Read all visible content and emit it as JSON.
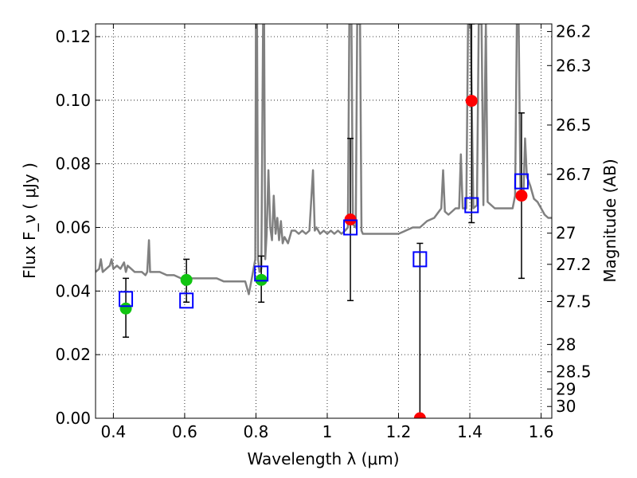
{
  "chart_data": {
    "type": "scatter",
    "title": "",
    "xlabel": "Wavelength  λ (μm)",
    "ylabel": "Flux  F_ν  ( μJy )",
    "ylabel_right": "Magnitude (AB)",
    "xlim": [
      0.35,
      1.63
    ],
    "ylim": [
      0.0,
      0.124
    ],
    "grid": true,
    "x_ticks": [
      0.4,
      0.6,
      0.8,
      1.0,
      1.2,
      1.4,
      1.6
    ],
    "x_tick_labels": [
      "0.4",
      "0.6",
      "0.8",
      "1",
      "1.2",
      "1.4",
      "1.6"
    ],
    "y_ticks": [
      0.0,
      0.02,
      0.04,
      0.06,
      0.08,
      0.1,
      0.12
    ],
    "y_tick_labels": [
      "0.00",
      "0.02",
      "0.04",
      "0.06",
      "0.08",
      "0.10",
      "0.12"
    ],
    "mag_ticks": [
      {
        "label": "26.2",
        "flux": 0.1216
      },
      {
        "label": "26.3",
        "flux": 0.1109
      },
      {
        "label": "26.5",
        "flux": 0.0922
      },
      {
        "label": "26.7",
        "flux": 0.0767
      },
      {
        "label": "27",
        "flux": 0.0582
      },
      {
        "label": "27.2",
        "flux": 0.0484
      },
      {
        "label": "27.5",
        "flux": 0.0367
      },
      {
        "label": "28",
        "flux": 0.0232
      },
      {
        "label": "28.5",
        "flux": 0.0146
      },
      {
        "label": "29",
        "flux": 0.0092
      },
      {
        "label": "30",
        "flux": 0.0037
      }
    ],
    "colors": {
      "model": "#808080",
      "green": "#11c511",
      "red": "#ff0000",
      "box": "#0000ff",
      "errorbar": "#000000"
    },
    "model_spectrum": [
      [
        0.35,
        0.046
      ],
      [
        0.36,
        0.047
      ],
      [
        0.365,
        0.05
      ],
      [
        0.37,
        0.046
      ],
      [
        0.38,
        0.047
      ],
      [
        0.39,
        0.048
      ],
      [
        0.395,
        0.05
      ],
      [
        0.4,
        0.047
      ],
      [
        0.41,
        0.048
      ],
      [
        0.42,
        0.047
      ],
      [
        0.43,
        0.049
      ],
      [
        0.435,
        0.046
      ],
      [
        0.44,
        0.048
      ],
      [
        0.45,
        0.047
      ],
      [
        0.46,
        0.046
      ],
      [
        0.47,
        0.046
      ],
      [
        0.48,
        0.046
      ],
      [
        0.49,
        0.045
      ],
      [
        0.495,
        0.046
      ],
      [
        0.5,
        0.056
      ],
      [
        0.503,
        0.046
      ],
      [
        0.51,
        0.046
      ],
      [
        0.53,
        0.046
      ],
      [
        0.55,
        0.045
      ],
      [
        0.57,
        0.045
      ],
      [
        0.59,
        0.044
      ],
      [
        0.61,
        0.044
      ],
      [
        0.63,
        0.044
      ],
      [
        0.65,
        0.044
      ],
      [
        0.67,
        0.044
      ],
      [
        0.69,
        0.044
      ],
      [
        0.71,
        0.043
      ],
      [
        0.73,
        0.043
      ],
      [
        0.75,
        0.043
      ],
      [
        0.76,
        0.043
      ],
      [
        0.77,
        0.043
      ],
      [
        0.78,
        0.039
      ],
      [
        0.79,
        0.045
      ],
      [
        0.798,
        0.05
      ],
      [
        0.8,
        0.124
      ],
      [
        0.803,
        0.124
      ],
      [
        0.806,
        0.05
      ],
      [
        0.81,
        0.046
      ],
      [
        0.815,
        0.047
      ],
      [
        0.82,
        0.124
      ],
      [
        0.823,
        0.124
      ],
      [
        0.826,
        0.05
      ],
      [
        0.83,
        0.058
      ],
      [
        0.835,
        0.078
      ],
      [
        0.84,
        0.06
      ],
      [
        0.845,
        0.056
      ],
      [
        0.85,
        0.07
      ],
      [
        0.855,
        0.058
      ],
      [
        0.86,
        0.063
      ],
      [
        0.865,
        0.056
      ],
      [
        0.87,
        0.062
      ],
      [
        0.875,
        0.055
      ],
      [
        0.88,
        0.057
      ],
      [
        0.89,
        0.055
      ],
      [
        0.9,
        0.059
      ],
      [
        0.91,
        0.059
      ],
      [
        0.92,
        0.058
      ],
      [
        0.93,
        0.059
      ],
      [
        0.94,
        0.058
      ],
      [
        0.95,
        0.059
      ],
      [
        0.96,
        0.078
      ],
      [
        0.965,
        0.059
      ],
      [
        0.97,
        0.06
      ],
      [
        0.98,
        0.058
      ],
      [
        0.99,
        0.059
      ],
      [
        1.0,
        0.058
      ],
      [
        1.01,
        0.059
      ],
      [
        1.02,
        0.058
      ],
      [
        1.03,
        0.059
      ],
      [
        1.04,
        0.058
      ],
      [
        1.05,
        0.059
      ],
      [
        1.058,
        0.06
      ],
      [
        1.062,
        0.124
      ],
      [
        1.068,
        0.124
      ],
      [
        1.072,
        0.061
      ],
      [
        1.08,
        0.06
      ],
      [
        1.084,
        0.124
      ],
      [
        1.092,
        0.124
      ],
      [
        1.096,
        0.059
      ],
      [
        1.1,
        0.058
      ],
      [
        1.12,
        0.058
      ],
      [
        1.14,
        0.058
      ],
      [
        1.16,
        0.058
      ],
      [
        1.18,
        0.058
      ],
      [
        1.2,
        0.058
      ],
      [
        1.22,
        0.059
      ],
      [
        1.24,
        0.06
      ],
      [
        1.26,
        0.06
      ],
      [
        1.28,
        0.062
      ],
      [
        1.3,
        0.063
      ],
      [
        1.32,
        0.066
      ],
      [
        1.325,
        0.078
      ],
      [
        1.33,
        0.065
      ],
      [
        1.34,
        0.064
      ],
      [
        1.35,
        0.065
      ],
      [
        1.36,
        0.066
      ],
      [
        1.37,
        0.066
      ],
      [
        1.375,
        0.083
      ],
      [
        1.38,
        0.066
      ],
      [
        1.39,
        0.066
      ],
      [
        1.395,
        0.124
      ],
      [
        1.402,
        0.124
      ],
      [
        1.41,
        0.066
      ],
      [
        1.42,
        0.067
      ],
      [
        1.425,
        0.124
      ],
      [
        1.433,
        0.124
      ],
      [
        1.438,
        0.067
      ],
      [
        1.445,
        0.124
      ],
      [
        1.45,
        0.068
      ],
      [
        1.47,
        0.066
      ],
      [
        1.49,
        0.066
      ],
      [
        1.51,
        0.066
      ],
      [
        1.52,
        0.066
      ],
      [
        1.527,
        0.07
      ],
      [
        1.532,
        0.124
      ],
      [
        1.537,
        0.124
      ],
      [
        1.542,
        0.072
      ],
      [
        1.55,
        0.069
      ],
      [
        1.555,
        0.088
      ],
      [
        1.56,
        0.076
      ],
      [
        1.57,
        0.073
      ],
      [
        1.58,
        0.069
      ],
      [
        1.59,
        0.068
      ],
      [
        1.6,
        0.066
      ],
      [
        1.61,
        0.064
      ],
      [
        1.62,
        0.063
      ],
      [
        1.63,
        0.063
      ]
    ],
    "errorbars": [
      {
        "x": 0.435,
        "low": 0.0255,
        "high": 0.044
      },
      {
        "x": 0.605,
        "low": 0.0365,
        "high": 0.05
      },
      {
        "x": 0.815,
        "low": 0.0365,
        "high": 0.051
      },
      {
        "x": 1.065,
        "low": 0.037,
        "high": 0.088
      },
      {
        "x": 1.26,
        "low": 0.0,
        "high": 0.055
      },
      {
        "x": 1.405,
        "low": 0.0615,
        "high": 0.124
      },
      {
        "x": 1.545,
        "low": 0.044,
        "high": 0.096
      }
    ],
    "series": [
      {
        "marker": "circle",
        "color": "green",
        "points": [
          [
            0.435,
            0.0345
          ],
          [
            0.605,
            0.0435
          ],
          [
            0.815,
            0.0435
          ]
        ]
      },
      {
        "marker": "circle",
        "color": "red",
        "points": [
          [
            1.065,
            0.0625
          ],
          [
            1.26,
            0.0
          ],
          [
            1.405,
            0.0998
          ],
          [
            1.545,
            0.07
          ]
        ]
      },
      {
        "marker": "square",
        "color": "box",
        "points": [
          [
            0.435,
            0.0375
          ],
          [
            0.605,
            0.037
          ],
          [
            0.815,
            0.0455
          ],
          [
            1.065,
            0.06
          ],
          [
            1.26,
            0.05
          ],
          [
            1.405,
            0.067
          ],
          [
            1.545,
            0.0745
          ]
        ]
      }
    ]
  }
}
